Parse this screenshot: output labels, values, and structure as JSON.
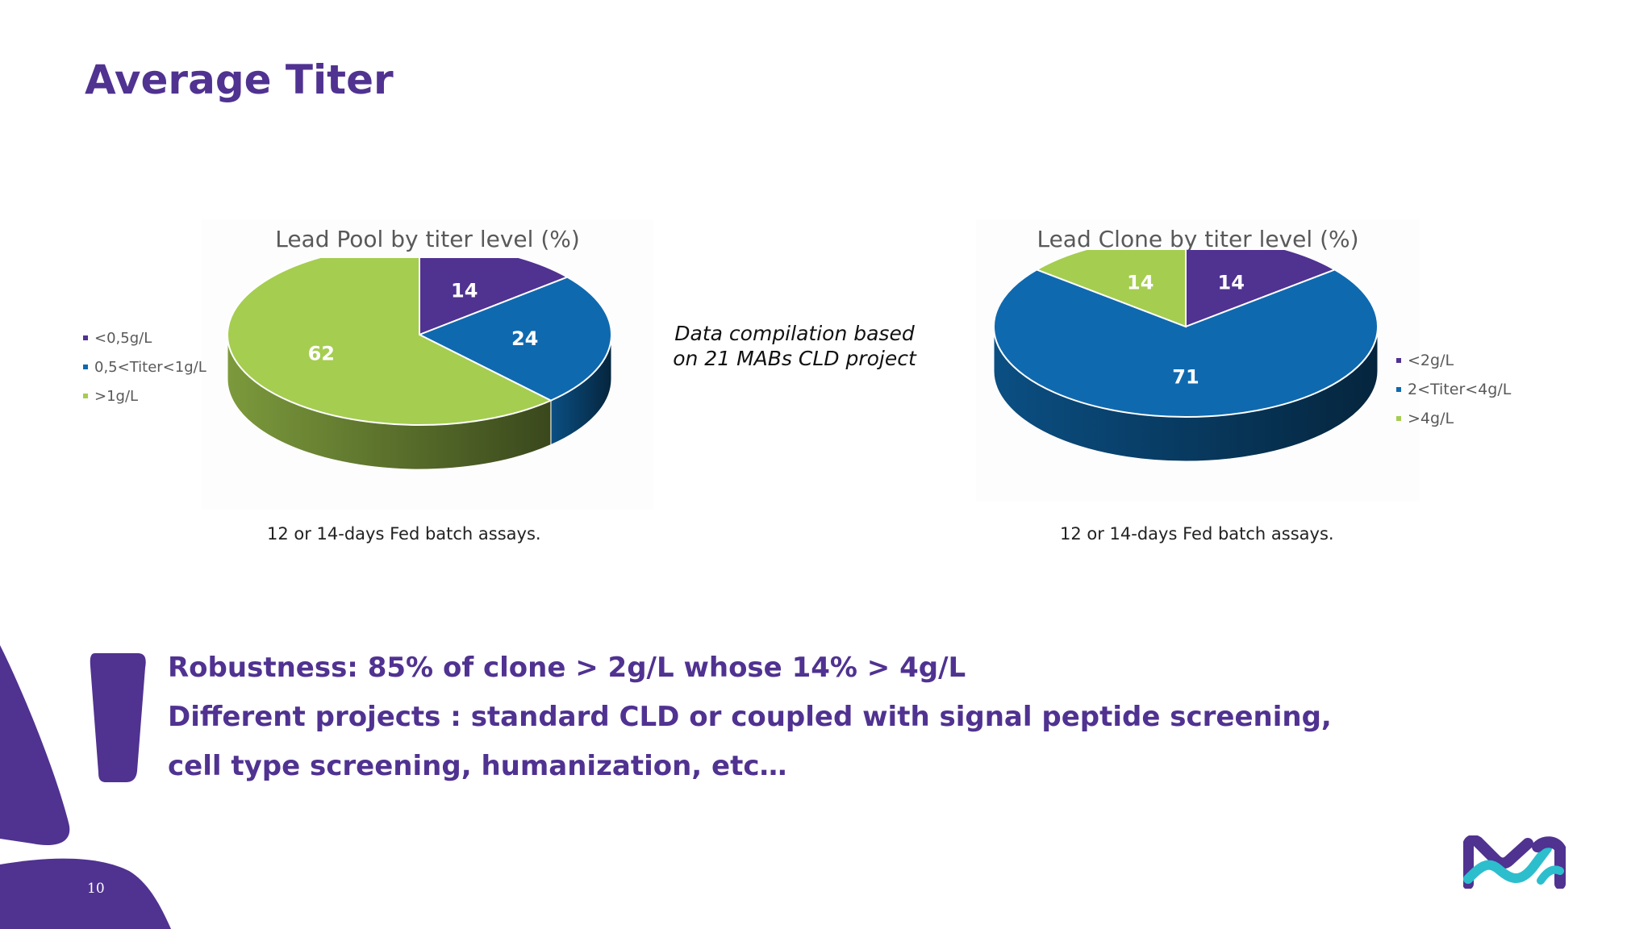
{
  "slide": {
    "title": "Average Titer",
    "note_line1": "Data compilation based",
    "note_line2": "on 21 MABs CLD project",
    "message_lines": [
      "Robustness: 85% of clone > 2g/L whose 14% > 4g/L",
      "Different projects : standard CLD or coupled with signal peptide screening,",
      "cell type screening, humanization, etc…"
    ],
    "page_number": "10",
    "brand_colors": {
      "purple": "#503291",
      "blue": "#0F69AF",
      "green": "#A5CD50",
      "cyan": "#2DBECD"
    }
  },
  "chart_data": [
    {
      "type": "pie",
      "title": "Lead Pool by titer level (%)",
      "caption": "12 or 14-days Fed batch assays.",
      "legend_position": "left",
      "categories": [
        "<0,5g/L",
        "0,5<Titer<1g/L",
        ">1g/L"
      ],
      "values": [
        14,
        24,
        62
      ],
      "colors": [
        "#503291",
        "#0F69AF",
        "#A5CD50"
      ],
      "three_d": true
    },
    {
      "type": "pie",
      "title": "Lead Clone by titer level (%)",
      "caption": "12 or 14-days Fed batch assays.",
      "legend_position": "right",
      "categories": [
        "<2g/L",
        "2<Titer<4g/L",
        ">4g/L"
      ],
      "values": [
        14,
        71,
        14
      ],
      "colors": [
        "#503291",
        "#0F69AF",
        "#A5CD50"
      ],
      "three_d": true
    }
  ]
}
